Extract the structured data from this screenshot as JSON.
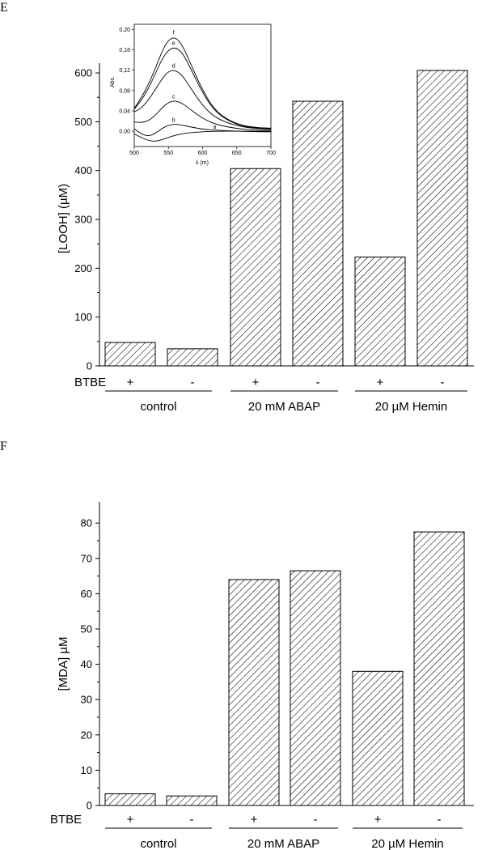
{
  "chart_data": [
    {
      "panel": "E",
      "type": "bar",
      "ylabel": "[LOOH] (µM)",
      "ylim": [
        0,
        620
      ],
      "yticks": [
        0,
        100,
        200,
        300,
        400,
        500,
        600
      ],
      "row_label": "BTBE",
      "categories": [
        "+",
        "-",
        "+",
        "-",
        "+",
        "-"
      ],
      "groups": [
        {
          "label": "control",
          "members": [
            0,
            1
          ]
        },
        {
          "label": "20 mM ABAP",
          "members": [
            2,
            3
          ]
        },
        {
          "label": "20 µM Hemin",
          "members": [
            4,
            5
          ]
        }
      ],
      "values": [
        48,
        35,
        404,
        542,
        223,
        605
      ],
      "bar_fill": "hatched",
      "inset": {
        "type": "line",
        "ylabel": "Abs.",
        "xlabel": "λ (m)",
        "xlim": [
          500,
          700
        ],
        "ylim": [
          -0.03,
          0.21
        ],
        "xticks": [
          500,
          550,
          600,
          650,
          700
        ],
        "yticks": [
          "0,00",
          "0,04",
          "0,08",
          "0,12",
          "0,16",
          "0,20"
        ],
        "ytick_values": [
          0.0,
          0.04,
          0.08,
          0.12,
          0.16,
          0.2
        ],
        "series": [
          {
            "name": "a",
            "x": [
              500,
              510,
              520,
              530,
              540,
              550,
              560,
              570,
              580,
              600,
              620,
              650,
              680,
              700
            ],
            "values": [
              -0.005,
              -0.012,
              -0.018,
              -0.02,
              -0.017,
              -0.012,
              -0.008,
              -0.005,
              -0.003,
              -0.001,
              0.0,
              0.0,
              0.0,
              0.0
            ]
          },
          {
            "name": "b",
            "x": [
              500,
              510,
              520,
              530,
              540,
              550,
              560,
              570,
              580,
              600,
              620,
              650,
              680,
              700
            ],
            "values": [
              0.005,
              -0.005,
              -0.01,
              -0.005,
              0.005,
              0.012,
              0.014,
              0.012,
              0.009,
              0.004,
              0.002,
              0.0,
              -0.001,
              -0.001
            ]
          },
          {
            "name": "c",
            "x": [
              500,
              510,
              520,
              530,
              540,
              550,
              560,
              570,
              580,
              600,
              620,
              650,
              680,
              700
            ],
            "values": [
              0.018,
              0.017,
              0.02,
              0.03,
              0.045,
              0.057,
              0.06,
              0.055,
              0.045,
              0.025,
              0.013,
              0.005,
              0.002,
              0.002
            ]
          },
          {
            "name": "d",
            "x": [
              500,
              510,
              520,
              530,
              540,
              550,
              560,
              570,
              580,
              600,
              620,
              650,
              680,
              700
            ],
            "values": [
              0.038,
              0.045,
              0.06,
              0.08,
              0.102,
              0.118,
              0.12,
              0.11,
              0.09,
              0.05,
              0.025,
              0.01,
              0.005,
              0.004
            ]
          },
          {
            "name": "e",
            "x": [
              500,
              510,
              520,
              530,
              540,
              550,
              560,
              570,
              580,
              600,
              620,
              650,
              680,
              700
            ],
            "values": [
              0.043,
              0.06,
              0.082,
              0.11,
              0.14,
              0.16,
              0.165,
              0.155,
              0.13,
              0.075,
              0.035,
              0.012,
              0.006,
              0.005
            ]
          },
          {
            "name": "f",
            "x": [
              500,
              510,
              520,
              530,
              540,
              550,
              560,
              570,
              580,
              600,
              620,
              650,
              680,
              700
            ],
            "values": [
              0.045,
              0.065,
              0.09,
              0.12,
              0.155,
              0.18,
              0.185,
              0.17,
              0.14,
              0.08,
              0.037,
              0.013,
              0.007,
              0.006
            ]
          }
        ]
      }
    },
    {
      "panel": "F",
      "type": "bar",
      "ylabel": "[MDA] µM",
      "ylim": [
        0,
        86
      ],
      "yticks": [
        0,
        10,
        20,
        30,
        40,
        50,
        60,
        70,
        80
      ],
      "row_label": "BTBE",
      "categories": [
        "+",
        "-",
        "+",
        "-",
        "+",
        "-"
      ],
      "groups": [
        {
          "label": "control",
          "members": [
            0,
            1
          ]
        },
        {
          "label": "20 mM ABAP",
          "members": [
            2,
            3
          ]
        },
        {
          "label": "20 µM Hemin",
          "members": [
            4,
            5
          ]
        }
      ],
      "values": [
        3.3,
        2.7,
        64,
        66.5,
        38,
        77.5
      ],
      "bar_fill": "hatched"
    }
  ]
}
